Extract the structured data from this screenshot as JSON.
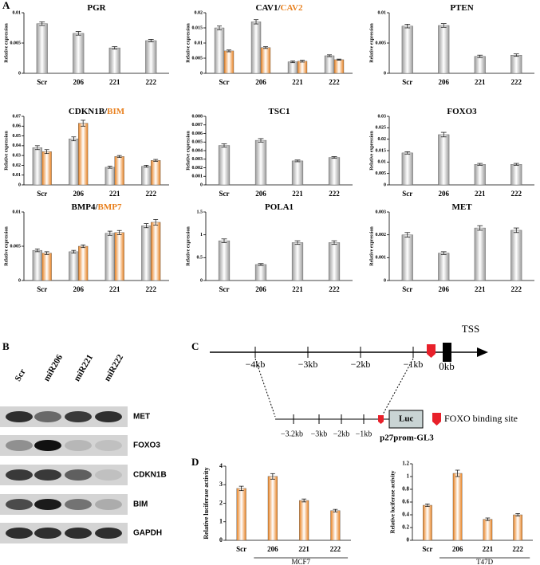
{
  "panel_labels": [
    "A",
    "B",
    "C",
    "D"
  ],
  "chart_data": [
    {
      "type": "bar",
      "title_parts": [
        {
          "text": "PGR",
          "color": "#000000"
        }
      ],
      "y_label": "Relative expression",
      "categories": [
        "Scr",
        "206",
        "221",
        "222"
      ],
      "series": [
        {
          "color": "#9a9a9a",
          "values": [
            0.0082,
            0.0066,
            0.0042,
            0.0054
          ],
          "errors": [
            0.0003,
            0.0003,
            0.0002,
            0.0002
          ]
        }
      ],
      "ylim": [
        0,
        0.01
      ],
      "yticks": [
        0,
        0.005,
        0.01
      ]
    },
    {
      "type": "bar",
      "title_parts": [
        {
          "text": "CAV1/",
          "color": "#000000"
        },
        {
          "text": "CAV2",
          "color": "#e8801e"
        }
      ],
      "y_label": "Relative expression",
      "categories": [
        "Scr",
        "206",
        "221",
        "222"
      ],
      "series": [
        {
          "color": "#9a9a9a",
          "values": [
            0.015,
            0.017,
            0.0038,
            0.0058
          ],
          "errors": [
            0.0006,
            0.0007,
            0.0003,
            0.0003
          ]
        },
        {
          "color": "#e8801e",
          "values": [
            0.0074,
            0.0085,
            0.004,
            0.0045
          ],
          "errors": [
            0.0003,
            0.0003,
            0.0003,
            0.0002
          ]
        }
      ],
      "ylim": [
        0,
        0.02
      ],
      "yticks": [
        0,
        0.005,
        0.01,
        0.015,
        0.02
      ]
    },
    {
      "type": "bar",
      "title_parts": [
        {
          "text": "PTEN",
          "color": "#000000"
        }
      ],
      "y_label": "Relative expression",
      "categories": [
        "Scr",
        "206",
        "221",
        "222"
      ],
      "series": [
        {
          "color": "#9a9a9a",
          "values": [
            0.0078,
            0.0079,
            0.0028,
            0.003
          ],
          "errors": [
            0.0003,
            0.0003,
            0.0002,
            0.0002
          ]
        }
      ],
      "ylim": [
        0,
        0.01
      ],
      "yticks": [
        0,
        0.005,
        0.01
      ]
    },
    {
      "type": "bar",
      "title_parts": [
        {
          "text": "CDKN1B/",
          "color": "#000000"
        },
        {
          "text": "BIM",
          "color": "#e8801e"
        }
      ],
      "y_label": "Relative expression",
      "categories": [
        "Scr",
        "206",
        "221",
        "222"
      ],
      "series": [
        {
          "color": "#9a9a9a",
          "values": [
            0.038,
            0.047,
            0.018,
            0.019
          ],
          "errors": [
            0.002,
            0.002,
            0.001,
            0.001
          ]
        },
        {
          "color": "#e8801e",
          "values": [
            0.034,
            0.063,
            0.029,
            0.025
          ],
          "errors": [
            0.002,
            0.003,
            0.001,
            0.001
          ]
        }
      ],
      "ylim": [
        0,
        0.07
      ],
      "yticks": [
        0,
        0.01,
        0.02,
        0.03,
        0.04,
        0.05,
        0.06,
        0.07
      ]
    },
    {
      "type": "bar",
      "title_parts": [
        {
          "text": "TSC1",
          "color": "#000000"
        }
      ],
      "y_label": "Relative expression",
      "categories": [
        "Scr",
        "206",
        "221",
        "222"
      ],
      "series": [
        {
          "color": "#9a9a9a",
          "values": [
            0.0046,
            0.0052,
            0.0028,
            0.0032
          ],
          "errors": [
            0.0002,
            0.0002,
            0.0001,
            0.0001
          ]
        }
      ],
      "ylim": [
        0,
        0.008
      ],
      "yticks": [
        0,
        0.001,
        0.002,
        0.003,
        0.004,
        0.005,
        0.006,
        0.007,
        0.008
      ]
    },
    {
      "type": "bar",
      "title_parts": [
        {
          "text": "FOXO3",
          "color": "#000000"
        }
      ],
      "y_label": "Relative expression",
      "categories": [
        "Scr",
        "206",
        "221",
        "222"
      ],
      "series": [
        {
          "color": "#9a9a9a",
          "values": [
            0.014,
            0.022,
            0.009,
            0.009
          ],
          "errors": [
            0.0005,
            0.001,
            0.0004,
            0.0004
          ]
        }
      ],
      "ylim": [
        0,
        0.03
      ],
      "yticks": [
        0,
        0.005,
        0.01,
        0.015,
        0.02,
        0.025,
        0.03
      ]
    },
    {
      "type": "bar",
      "title_parts": [
        {
          "text": "BMP4/",
          "color": "#000000"
        },
        {
          "text": "BMP7",
          "color": "#e8801e"
        }
      ],
      "y_label": "Relative expression",
      "categories": [
        "Scr",
        "206",
        "221",
        "222"
      ],
      "series": [
        {
          "color": "#9a9a9a",
          "values": [
            0.0044,
            0.0042,
            0.0069,
            0.008
          ],
          "errors": [
            0.0002,
            0.0002,
            0.0003,
            0.0003
          ]
        },
        {
          "color": "#e8801e",
          "values": [
            0.004,
            0.005,
            0.007,
            0.0085
          ],
          "errors": [
            0.0002,
            0.0002,
            0.0003,
            0.0004
          ]
        }
      ],
      "ylim": [
        0,
        0.01
      ],
      "yticks": [
        0,
        0.005,
        0.01
      ]
    },
    {
      "type": "bar",
      "title_parts": [
        {
          "text": "POLA1",
          "color": "#000000"
        }
      ],
      "y_label": "Relative expression",
      "categories": [
        "Scr",
        "206",
        "221",
        "222"
      ],
      "series": [
        {
          "color": "#9a9a9a",
          "values": [
            0.87,
            0.35,
            0.83,
            0.83
          ],
          "errors": [
            0.04,
            0.02,
            0.04,
            0.04
          ]
        }
      ],
      "ylim": [
        0,
        1.5
      ],
      "yticks": [
        0,
        0.5,
        1,
        1.5
      ]
    },
    {
      "type": "bar",
      "title_parts": [
        {
          "text": "MET",
          "color": "#000000"
        }
      ],
      "y_label": "Relative expression",
      "categories": [
        "Scr",
        "206",
        "221",
        "222"
      ],
      "series": [
        {
          "color": "#9a9a9a",
          "values": [
            0.002,
            0.0012,
            0.0023,
            0.0022
          ],
          "errors": [
            0.0001,
            6e-05,
            0.0001,
            0.0001
          ]
        }
      ],
      "ylim": [
        0,
        0.003
      ],
      "yticks": [
        0,
        0.001,
        0.002,
        0.003
      ]
    },
    {
      "type": "bar",
      "y_label": "Relative luciferase activity",
      "x_label": "MCF7",
      "categories": [
        "Scr",
        "206",
        "221",
        "222"
      ],
      "series": [
        {
          "color": "#e8801e",
          "values": [
            2.8,
            3.45,
            2.15,
            1.6
          ],
          "errors": [
            0.12,
            0.15,
            0.08,
            0.07
          ]
        }
      ],
      "ylim": [
        0,
        4
      ],
      "yticks": [
        0,
        1,
        2,
        3,
        4
      ]
    },
    {
      "type": "bar",
      "y_label": "Relative luciferase activity",
      "x_label": "T47D",
      "categories": [
        "Scr",
        "206",
        "221",
        "222"
      ],
      "series": [
        {
          "color": "#e8801e",
          "values": [
            0.55,
            1.05,
            0.33,
            0.4
          ],
          "errors": [
            0.02,
            0.05,
            0.02,
            0.02
          ]
        }
      ],
      "ylim": [
        0,
        1.2
      ],
      "yticks": [
        0,
        0.2,
        0.4,
        0.6,
        0.8,
        1,
        1.2
      ]
    }
  ],
  "western_blot": {
    "lanes": [
      "Scr",
      "miR206",
      "miR221",
      "miR222"
    ],
    "rows": [
      "MET",
      "FOXO3",
      "CDKN1B",
      "BIM",
      "GAPDH"
    ]
  },
  "promoter_diagram": {
    "tss": "TSS",
    "genome_ticks": [
      "−4kb",
      "−3kb",
      "−2kb",
      "−1kb"
    ],
    "origin": "0kb",
    "construct_ticks": [
      "−3.2kb",
      "−3kb",
      "−2kb",
      "−1kb"
    ],
    "reporter": "Luc",
    "construct_name": "p27prom-GL3",
    "legend": "FOXO binding site"
  }
}
